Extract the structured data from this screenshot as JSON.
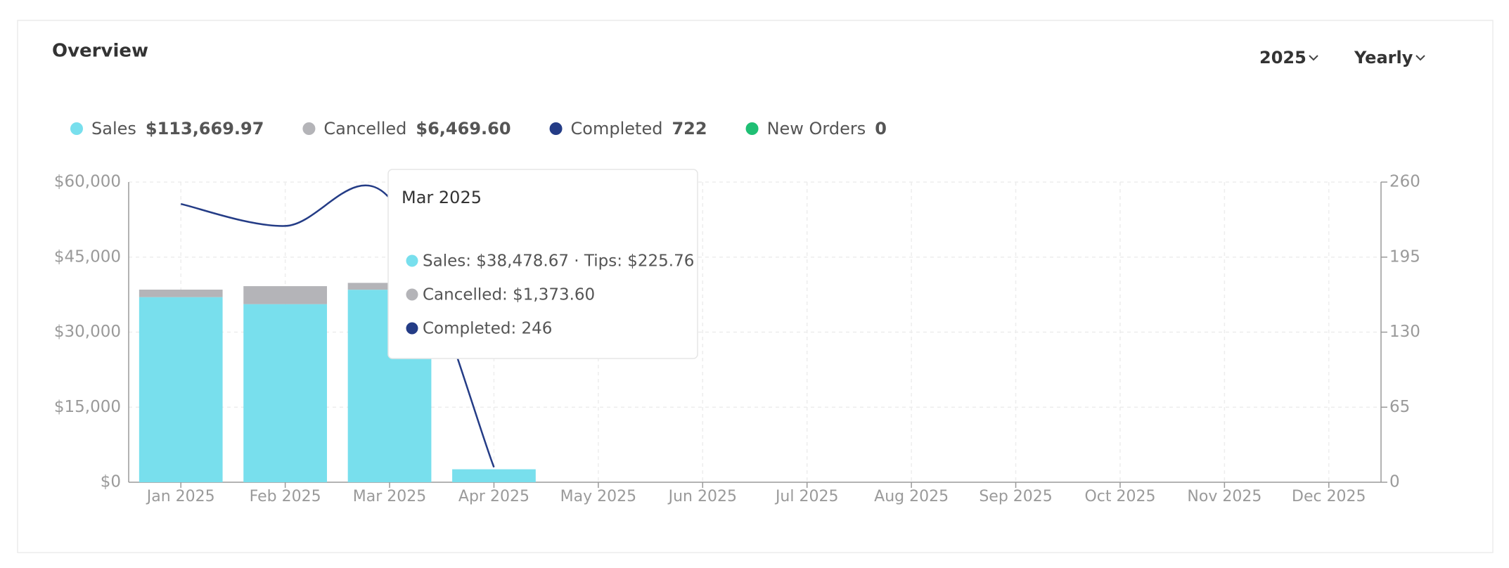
{
  "header": {
    "title": "Overview",
    "year": "2025",
    "period": "Yearly"
  },
  "chart_data": {
    "type": "bar",
    "categories": [
      "Jan 2025",
      "Feb 2025",
      "Mar 2025",
      "Apr 2025",
      "May 2025",
      "Jun 2025",
      "Jul 2025",
      "Aug 2025",
      "Sep 2025",
      "Oct 2025",
      "Nov 2025",
      "Dec 2025"
    ],
    "series": [
      {
        "name": "Sales",
        "total": "$113,669.97",
        "color": "#78dfed",
        "values": [
          37000,
          35600,
          38478.67,
          2591.3,
          null,
          null,
          null,
          null,
          null,
          null,
          null,
          null
        ]
      },
      {
        "name": "Cancelled",
        "total": "$6,469.60",
        "color": "#b4b4b8",
        "values": [
          1500,
          3596,
          1373.6,
          0,
          null,
          null,
          null,
          null,
          null,
          null,
          null,
          null
        ]
      },
      {
        "name": "Completed",
        "total": "722",
        "color": "#243c86",
        "axis": "y2",
        "values": [
          241,
          222,
          246,
          13,
          null,
          null,
          null,
          null,
          null,
          null,
          null,
          null
        ]
      },
      {
        "name": "New Orders",
        "total": "0",
        "color": "#1fbf74",
        "values": [
          null,
          null,
          null,
          null,
          null,
          null,
          null,
          null,
          null,
          null,
          null,
          null
        ]
      }
    ],
    "ylim": [
      0,
      60000
    ],
    "yticks": [
      {
        "value": 0,
        "label": "$0"
      },
      {
        "value": 15000,
        "label": "$15,000"
      },
      {
        "value": 30000,
        "label": "$30,000"
      },
      {
        "value": 45000,
        "label": "$45,000"
      },
      {
        "value": 60000,
        "label": "$60,000"
      }
    ],
    "y2lim": [
      0,
      260
    ],
    "y2ticks": [
      0,
      65,
      130,
      195,
      260
    ],
    "grid": true,
    "stacked": true,
    "tooltip": {
      "title": "Mar 2025",
      "lines": [
        "Sales: $38,478.67 · Tips: $225.76",
        "Cancelled: $1,373.60",
        "Completed: 246"
      ]
    }
  }
}
